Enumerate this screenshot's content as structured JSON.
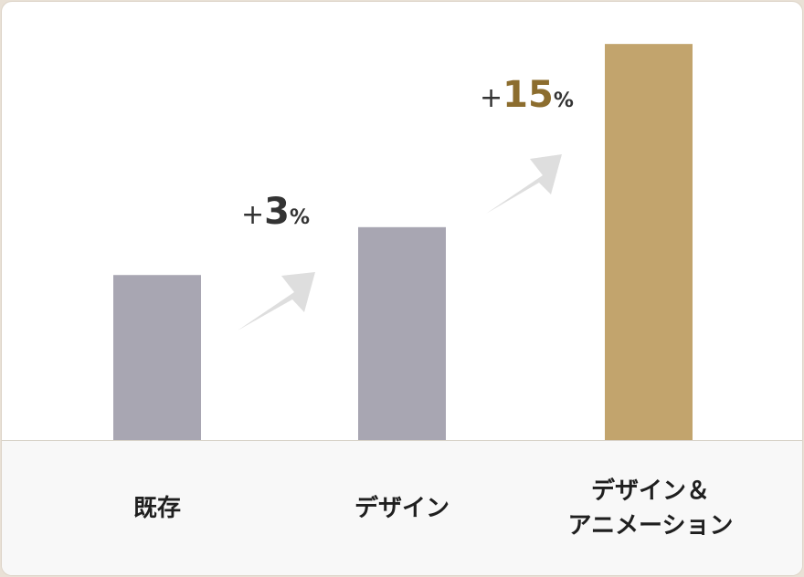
{
  "chart_data": {
    "type": "bar",
    "categories": [
      "既存",
      "デザイン",
      "デザイン＆\nアニメーション"
    ],
    "values": [
      100,
      129,
      240
    ],
    "bar_colors": [
      "#a8a6b2",
      "#a8a6b2",
      "#c2a46d"
    ],
    "annotations": [
      {
        "plus": "+",
        "number": "3",
        "unit": "%",
        "color": "#333333"
      },
      {
        "plus": "+",
        "number": "15",
        "unit": "%",
        "color": "#8c6d2e"
      }
    ],
    "arrow_color": "#dedede",
    "ylim": [
      0,
      260
    ],
    "grid": false
  }
}
